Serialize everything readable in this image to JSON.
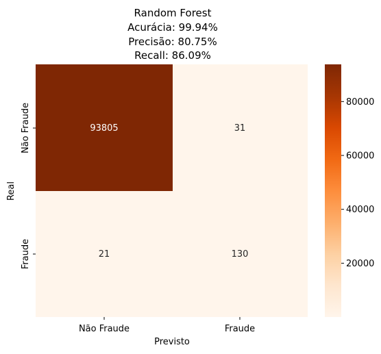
{
  "chart_data": {
    "type": "heatmap",
    "title_lines": [
      "Random Forest",
      "Acurácia: 99.94%",
      "Precisão: 80.75%",
      "Recall: 86.09%"
    ],
    "xlabel": "Previsto",
    "ylabel": "Real",
    "x_categories": [
      "Não Fraude",
      "Fraude"
    ],
    "y_categories": [
      "Não Fraude",
      "Fraude"
    ],
    "values": [
      [
        93805,
        31
      ],
      [
        21,
        130
      ]
    ],
    "cell_labels": [
      [
        "93805",
        "31"
      ],
      [
        "21",
        "130"
      ]
    ],
    "colormap": "Oranges",
    "colorbar": {
      "min": 21,
      "max": 93805,
      "ticks": [
        20000,
        40000,
        60000,
        80000
      ],
      "tick_labels": [
        "20000",
        "40000",
        "60000",
        "80000"
      ]
    },
    "colors": {
      "low": "#fff5eb",
      "high": "#7f2704",
      "dark_text": "#262626",
      "light_text": "#ffffff"
    }
  }
}
